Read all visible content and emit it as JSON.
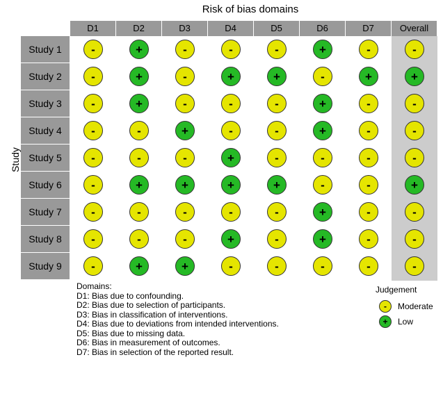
{
  "colors": {
    "moderate": "#e5e500",
    "low": "#25b925",
    "header_bg": "#999999",
    "overall_bg": "#cccccc"
  },
  "chart_data": {
    "type": "table",
    "title": "Risk of bias domains",
    "ylabel": "Study",
    "domains": [
      "D1",
      "D2",
      "D3",
      "D4",
      "D5",
      "D6",
      "D7",
      "Overall"
    ],
    "studies": [
      {
        "name": "Study 1",
        "judgements": [
          "Moderate",
          "Low",
          "Moderate",
          "Moderate",
          "Moderate",
          "Low",
          "Moderate",
          "Moderate"
        ]
      },
      {
        "name": "Study 2",
        "judgements": [
          "Moderate",
          "Low",
          "Moderate",
          "Low",
          "Low",
          "Moderate",
          "Low",
          "Low"
        ]
      },
      {
        "name": "Study 3",
        "judgements": [
          "Moderate",
          "Low",
          "Moderate",
          "Moderate",
          "Moderate",
          "Low",
          "Moderate",
          "Moderate"
        ]
      },
      {
        "name": "Study 4",
        "judgements": [
          "Moderate",
          "Moderate",
          "Low",
          "Moderate",
          "Moderate",
          "Low",
          "Moderate",
          "Moderate"
        ]
      },
      {
        "name": "Study 5",
        "judgements": [
          "Moderate",
          "Moderate",
          "Moderate",
          "Low",
          "Moderate",
          "Moderate",
          "Moderate",
          "Moderate"
        ]
      },
      {
        "name": "Study 6",
        "judgements": [
          "Moderate",
          "Low",
          "Low",
          "Low",
          "Low",
          "Moderate",
          "Moderate",
          "Low"
        ]
      },
      {
        "name": "Study 7",
        "judgements": [
          "Moderate",
          "Moderate",
          "Moderate",
          "Moderate",
          "Moderate",
          "Low",
          "Moderate",
          "Moderate"
        ]
      },
      {
        "name": "Study 8",
        "judgements": [
          "Moderate",
          "Moderate",
          "Moderate",
          "Low",
          "Moderate",
          "Low",
          "Moderate",
          "Moderate"
        ]
      },
      {
        "name": "Study 9",
        "judgements": [
          "Moderate",
          "Low",
          "Low",
          "Moderate",
          "Moderate",
          "Moderate",
          "Moderate",
          "Moderate"
        ]
      }
    ],
    "symbols": {
      "Moderate": "-",
      "Low": "+"
    },
    "domains_heading": "Domains:",
    "domain_descriptions": [
      "D1: Bias due to confounding.",
      "D2: Bias due to selection of participants.",
      "D3: Bias in classification of interventions.",
      "D4: Bias due to deviations from intended interventions.",
      "D5: Bias due to missing data.",
      "D6: Bias in measurement of outcomes.",
      "D7: Bias in selection of the reported result."
    ],
    "legend": {
      "title": "Judgement",
      "items": [
        {
          "label": "Moderate",
          "symbol": "-",
          "color": "#e5e500"
        },
        {
          "label": "Low",
          "symbol": "+",
          "color": "#25b925"
        }
      ]
    }
  }
}
